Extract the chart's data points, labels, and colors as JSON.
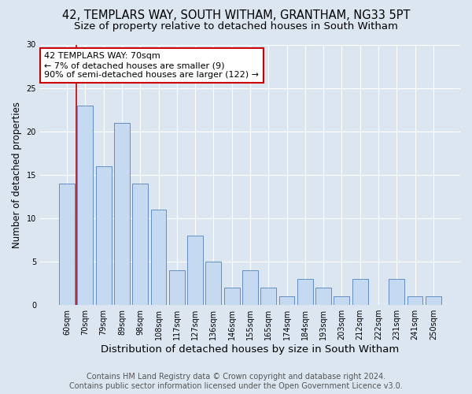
{
  "title": "42, TEMPLARS WAY, SOUTH WITHAM, GRANTHAM, NG33 5PT",
  "subtitle": "Size of property relative to detached houses in South Witham",
  "xlabel": "Distribution of detached houses by size in South Witham",
  "ylabel": "Number of detached properties",
  "categories": [
    "60sqm",
    "70sqm",
    "79sqm",
    "89sqm",
    "98sqm",
    "108sqm",
    "117sqm",
    "127sqm",
    "136sqm",
    "146sqm",
    "155sqm",
    "165sqm",
    "174sqm",
    "184sqm",
    "193sqm",
    "203sqm",
    "212sqm",
    "222sqm",
    "231sqm",
    "241sqm",
    "250sqm"
  ],
  "values": [
    14,
    23,
    16,
    21,
    14,
    11,
    4,
    8,
    5,
    2,
    4,
    2,
    1,
    3,
    2,
    1,
    3,
    0,
    3,
    1,
    1
  ],
  "bar_color": "#c5d9f1",
  "bar_edge_color": "#4f81bd",
  "background_color": "#dce6f1",
  "grid_color": "#ffffff",
  "annotation_line1": "42 TEMPLARS WAY: 70sqm",
  "annotation_line2": "← 7% of detached houses are smaller (9)",
  "annotation_line3": "90% of semi-detached houses are larger (122) →",
  "annotation_box_color": "#ffffff",
  "annotation_box_edge": "#cc0000",
  "vline_color": "#cc0000",
  "vline_x": 0.5,
  "ylim": [
    0,
    30
  ],
  "yticks": [
    0,
    5,
    10,
    15,
    20,
    25,
    30
  ],
  "footer_line1": "Contains HM Land Registry data © Crown copyright and database right 2024.",
  "footer_line2": "Contains public sector information licensed under the Open Government Licence v3.0.",
  "title_fontsize": 10.5,
  "subtitle_fontsize": 9.5,
  "xlabel_fontsize": 9.5,
  "ylabel_fontsize": 8.5,
  "tick_fontsize": 7,
  "annotation_fontsize": 8,
  "footer_fontsize": 7
}
